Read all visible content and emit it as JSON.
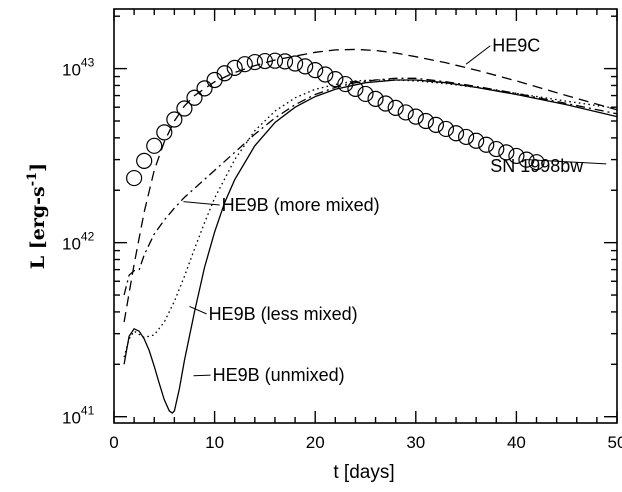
{
  "chart_data": {
    "type": "line",
    "xlabel": "t [days]",
    "ylabel": "L [erg-s^-1]",
    "ylabel_parts": {
      "main": "L [erg-s",
      "sup": "-1",
      "close": "]"
    },
    "xlim": [
      0,
      50
    ],
    "ylim": [
      9.2e+40,
      2.2e+43
    ],
    "yscale": "log",
    "grid": false,
    "legend": "none",
    "x_ticks": [
      {
        "value": 0,
        "label": "0"
      },
      {
        "value": 10,
        "label": "10"
      },
      {
        "value": 20,
        "label": "20"
      },
      {
        "value": 30,
        "label": "30"
      },
      {
        "value": 40,
        "label": "40"
      },
      {
        "value": 50,
        "label": "50"
      }
    ],
    "y_ticks": [
      {
        "value": 1e+41,
        "base": "10",
        "exp": "41"
      },
      {
        "value": 1e+42,
        "base": "10",
        "exp": "42"
      },
      {
        "value": 1e+43,
        "base": "10",
        "exp": "43"
      }
    ],
    "series": [
      {
        "name": "SN 1998bw",
        "style": "circles",
        "x": [
          2,
          3,
          4,
          5,
          6,
          7,
          8,
          9,
          10,
          11,
          12,
          13,
          14,
          15,
          16,
          17,
          18,
          19,
          20,
          21,
          22,
          23,
          24,
          25,
          26,
          27,
          28,
          29,
          30,
          31,
          32,
          33,
          34,
          35,
          36,
          37,
          38,
          39,
          40,
          41,
          42
        ],
        "y": [
          2.35e+42,
          2.95e+42,
          3.6e+42,
          4.3e+42,
          5.1e+42,
          5.9e+42,
          6.8e+42,
          7.7e+42,
          8.6e+42,
          9.4e+42,
          1.01e+43,
          1.06e+43,
          1.09e+43,
          1.105e+43,
          1.11e+43,
          1.1e+43,
          1.07e+43,
          1.03e+43,
          9.8e+42,
          9.25e+42,
          8.7e+42,
          8.15e+42,
          7.65e+42,
          7.15e+42,
          6.7e+42,
          6.3e+42,
          5.95e+42,
          5.6e+42,
          5.3e+42,
          5e+42,
          4.75e+42,
          4.5e+42,
          4.25e+42,
          4.05e+42,
          3.85e+42,
          3.65e+42,
          3.45e+42,
          3.3e+42,
          3.15e+42,
          3e+42,
          2.9e+42
        ]
      },
      {
        "name": "HE9C",
        "style": "dashed",
        "x": [
          1,
          2,
          3,
          4,
          5,
          6,
          7,
          8,
          10,
          12,
          14,
          16,
          18,
          20,
          22,
          24,
          26,
          28,
          30,
          33,
          36,
          40,
          45,
          50
        ],
        "y": [
          3.5e+41,
          7.5e+41,
          1.5e+42,
          2.6e+42,
          3.8e+42,
          5e+42,
          6.1e+42,
          7e+42,
          8.4e+42,
          9.5e+42,
          1.04e+43,
          1.12e+43,
          1.18e+43,
          1.24e+43,
          1.28e+43,
          1.29e+43,
          1.27e+43,
          1.23e+43,
          1.17e+43,
          1.08e+43,
          9.8e+42,
          8.5e+42,
          7e+42,
          5.8e+42
        ]
      },
      {
        "name": "HE9B (more mixed)",
        "style": "dash-dot",
        "x": [
          1,
          1.5,
          2,
          2.5,
          3,
          4,
          5,
          6,
          7,
          8,
          10,
          12,
          14,
          16,
          18,
          20,
          22,
          24,
          26,
          28,
          30,
          33,
          36,
          40,
          45,
          50
        ],
        "y": [
          5e+41,
          6.5e+41,
          6.9e+41,
          7e+41,
          8.5e+41,
          1.12e+42,
          1.35e+42,
          1.58e+42,
          1.82e+42,
          2.05e+42,
          2.6e+42,
          3.3e+42,
          4.2e+42,
          5.2e+42,
          6.2e+42,
          7.1e+42,
          7.8e+42,
          8.3e+42,
          8.6e+42,
          8.8e+42,
          8.8e+42,
          8.4e+42,
          7.9e+42,
          7.2e+42,
          6.3e+42,
          5.5e+42
        ]
      },
      {
        "name": "HE9B (less mixed)",
        "style": "dotted",
        "x": [
          1,
          1.5,
          2,
          3,
          4,
          5,
          6,
          7,
          8,
          9,
          10,
          12,
          14,
          16,
          18,
          20,
          22,
          24,
          26,
          28,
          30,
          33,
          36,
          40,
          45,
          50
        ],
        "y": [
          2.2e+41,
          2.8e+41,
          3.1e+41,
          2.85e+41,
          2.95e+41,
          3.5e+41,
          4.6e+41,
          6.4e+41,
          9.2e+41,
          1.3e+42,
          1.8e+42,
          3e+42,
          4.4e+42,
          5.7e+42,
          6.8e+42,
          7.6e+42,
          8.1e+42,
          8.5e+42,
          8.6e+42,
          8.6e+42,
          8.5e+42,
          8.2e+42,
          7.8e+42,
          7.2e+42,
          6.5e+42,
          5.9e+42
        ]
      },
      {
        "name": "HE9B (unmixed)",
        "style": "solid",
        "x": [
          1,
          1.5,
          2,
          2.5,
          3,
          3.5,
          4,
          4.5,
          5,
          5.5,
          5.8,
          6,
          6.5,
          7,
          8,
          9,
          10,
          11,
          12,
          14,
          16,
          18,
          20,
          22,
          25,
          28,
          30,
          33,
          36,
          40,
          45,
          50
        ],
        "y": [
          2e+41,
          2.9e+41,
          3.2e+41,
          3.1e+41,
          2.8e+41,
          2.4e+41,
          1.95e+41,
          1.55e+41,
          1.25e+41,
          1.08e+41,
          1.05e+41,
          1.08e+41,
          1.45e+41,
          2.1e+41,
          4e+41,
          7.2e+41,
          1.15e+42,
          1.7e+42,
          2.3e+42,
          3.6e+42,
          4.9e+42,
          6e+42,
          6.9e+42,
          7.6e+42,
          8.3e+42,
          8.6e+42,
          8.6e+42,
          8.3e+42,
          7.8e+42,
          7.1e+42,
          6.2e+42,
          5.3e+42
        ]
      }
    ],
    "annotations": [
      {
        "text": "HE9C",
        "series": "HE9C",
        "point": [
          35,
          1.06e+43
        ],
        "label_at": [
          37.6,
          1.25e+43
        ]
      },
      {
        "text": "SN 1998bw",
        "series": "SN 1998bw",
        "point": [
          41,
          3e+42
        ],
        "label_at": [
          37.4,
          2.55e+42
        ]
      },
      {
        "text": "HE9B (more mixed)",
        "series": "HE9B (more mixed)",
        "point": [
          6.9,
          1.72e+42
        ],
        "label_at": [
          10.7,
          1.52e+42
        ]
      },
      {
        "text": "HE9B (less mixed)",
        "series": "HE9B (less mixed)",
        "point": [
          7.5,
          4.3e+41
        ],
        "label_at": [
          9.4,
          3.6e+41
        ]
      },
      {
        "text": "HE9B (unmixed)",
        "series": "HE9B (unmixed)",
        "point": [
          7.9,
          1.72e+41
        ],
        "label_at": [
          9.8,
          1.6e+41
        ]
      }
    ]
  }
}
